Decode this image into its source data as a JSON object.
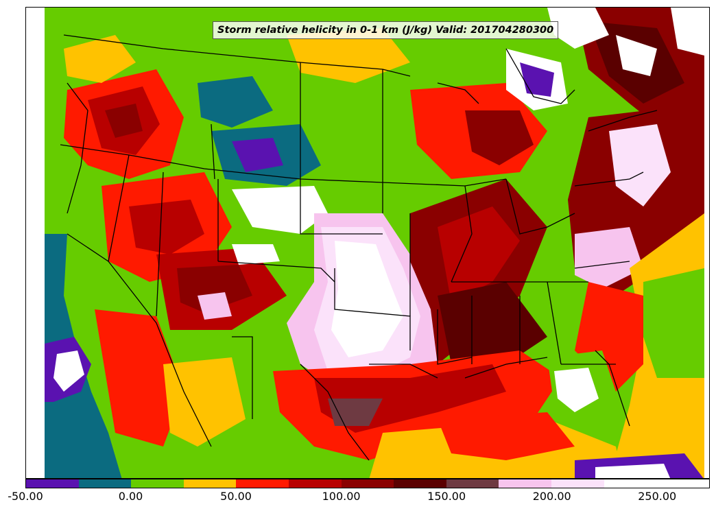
{
  "title": "Storm relative helicity in 0-1 km (J/kg) Valid: 201704280300",
  "colorbar": {
    "min": -50,
    "max": 275,
    "step": 25,
    "colors": [
      "#5a12b0",
      "#0b6b80",
      "#66cc00",
      "#ffc200",
      "#ff1a00",
      "#b80000",
      "#8a0000",
      "#5a0000",
      "#6e3a42",
      "#f7c4ee",
      "#fbe2fa",
      "#ffffff",
      "#ffffff"
    ],
    "tick_labels": [
      "-50.00",
      "0.00",
      "50.00",
      "100.00",
      "150.00",
      "200.00",
      "250.00"
    ],
    "tick_values": [
      -50,
      0,
      50,
      100,
      150,
      200,
      250
    ]
  }
}
